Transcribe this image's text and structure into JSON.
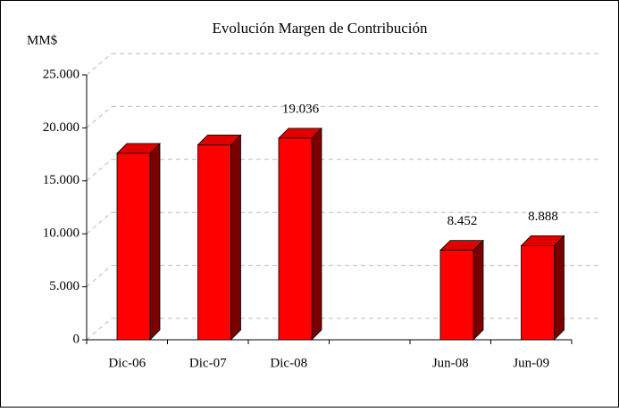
{
  "chart_data": {
    "type": "bar3d",
    "title": "Evolución Margen de Contribución",
    "y_label": "MM$",
    "categories": [
      "Dic-06",
      "Dic-07",
      "Dic-08",
      null,
      "Jun-08",
      "Jun-09"
    ],
    "values": [
      17600,
      18400,
      19036,
      null,
      8452,
      8888
    ],
    "value_labels": [
      null,
      null,
      "19.036",
      null,
      "8.452",
      "8.888"
    ],
    "color": "#ff0000",
    "ylim": [
      0,
      25000
    ],
    "yticks": [
      0,
      {
        "value": 5000,
        "label": "5.000"
      },
      {
        "value": 10000,
        "label": "10.000"
      },
      {
        "value": 15000,
        "label": "15.000"
      },
      {
        "value": 20000,
        "label": "20.000"
      },
      {
        "value": 25000,
        "label": "25.000"
      }
    ],
    "grid": true
  }
}
